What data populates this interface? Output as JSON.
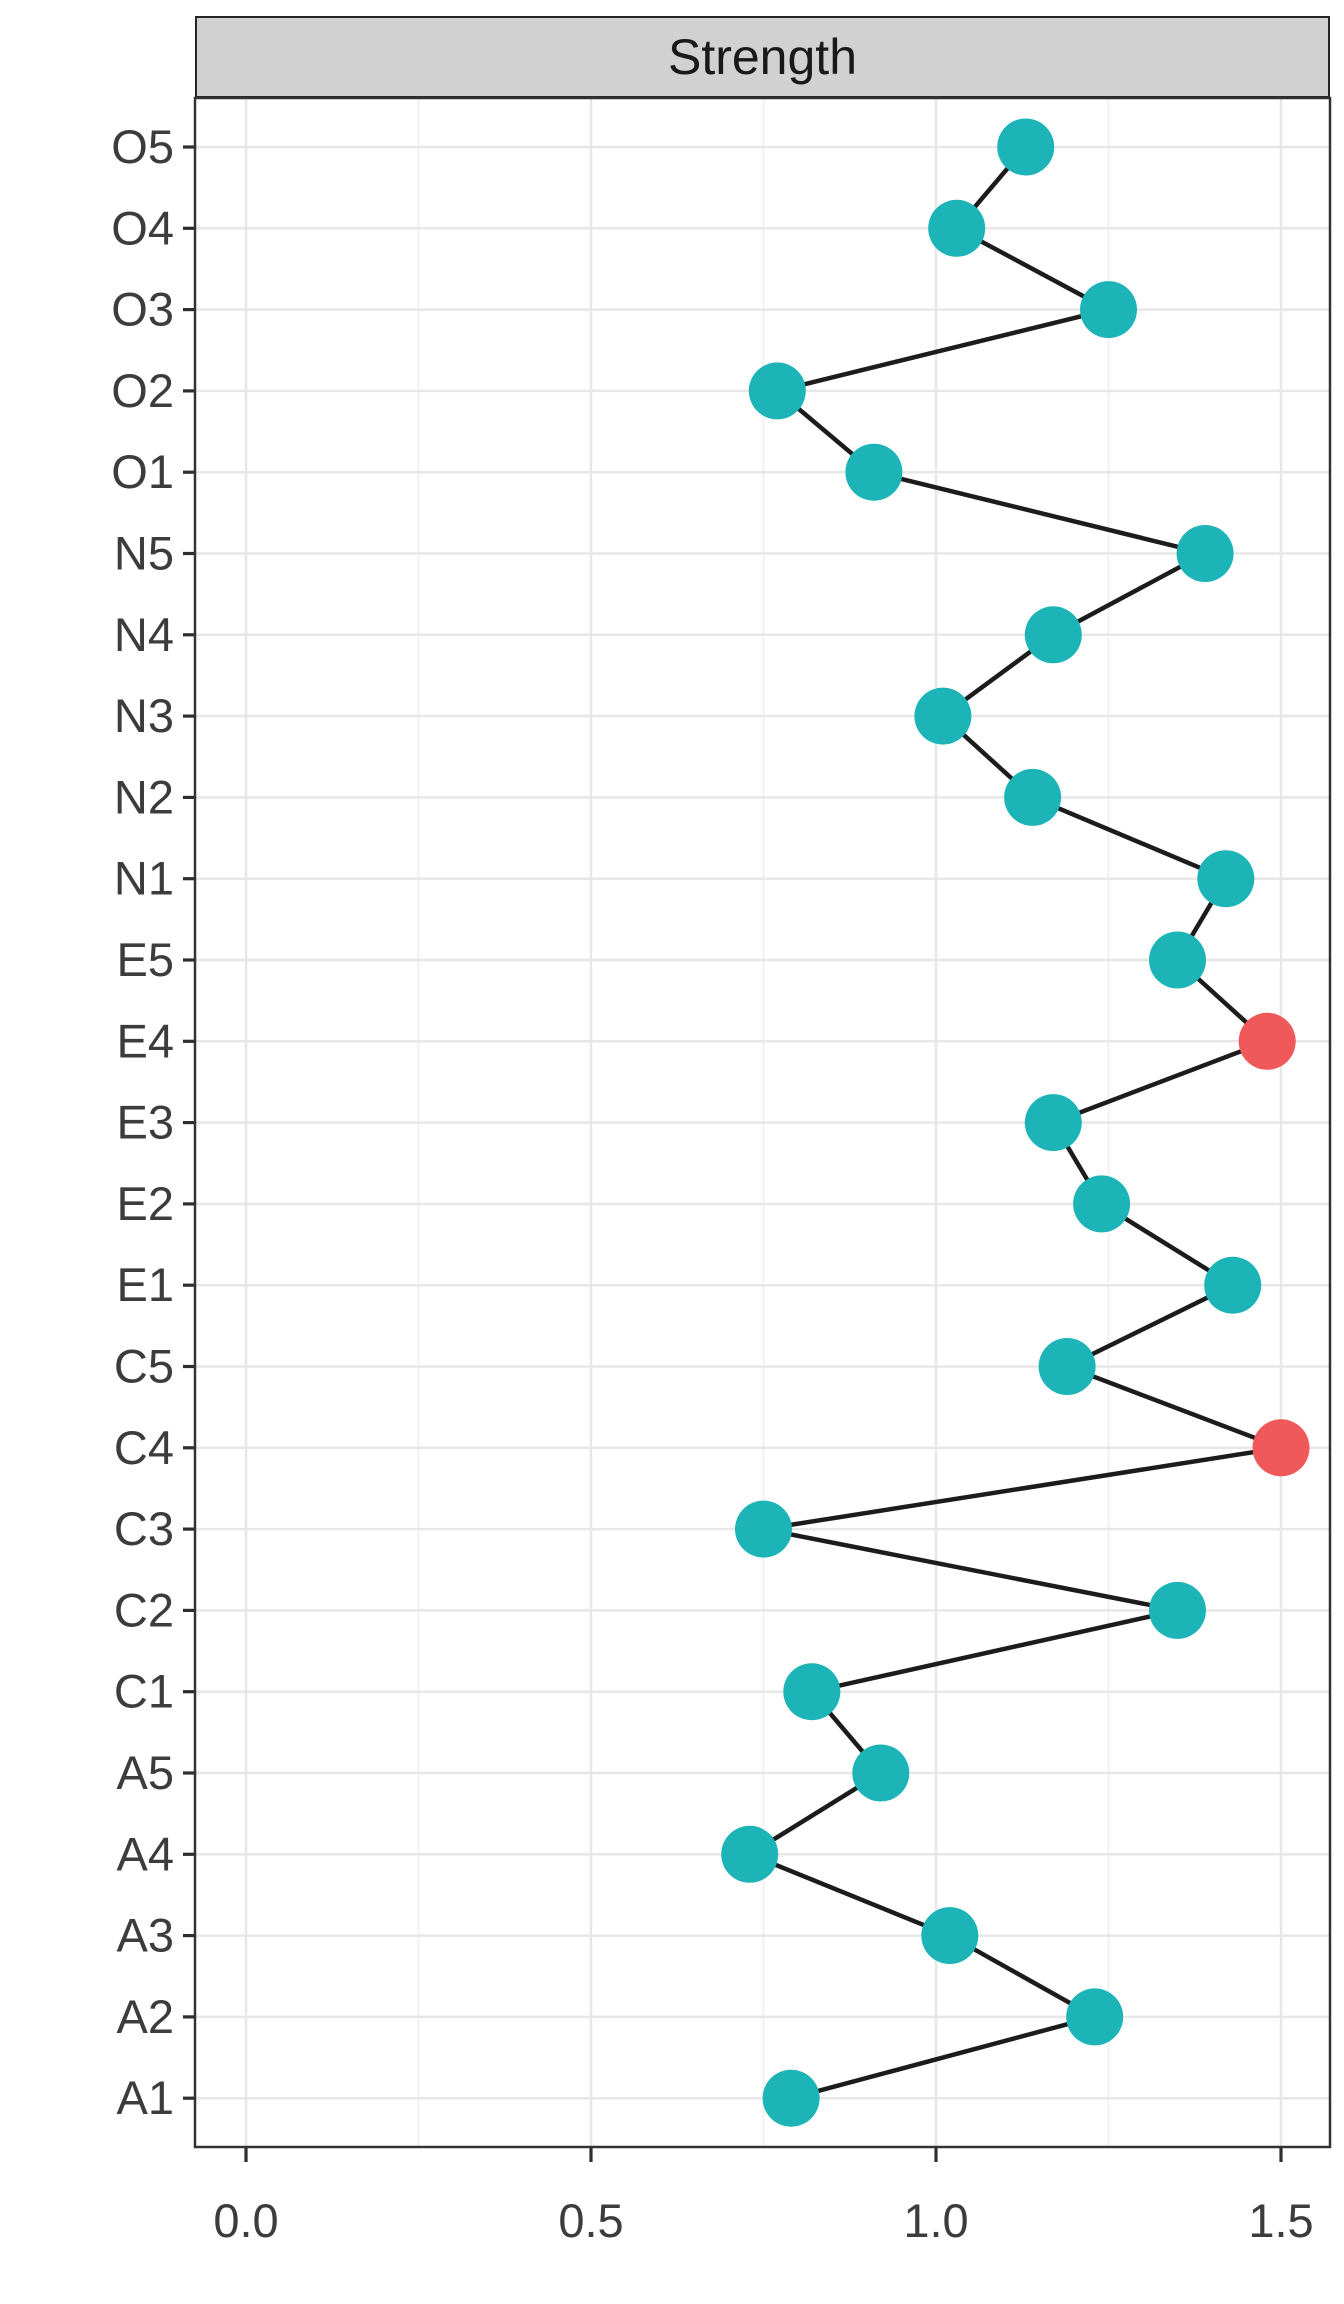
{
  "chart_data": {
    "type": "line",
    "orientation": "horizontal",
    "title": "Strength",
    "categories": [
      "O5",
      "O4",
      "O3",
      "O2",
      "O1",
      "N5",
      "N4",
      "N3",
      "N2",
      "N1",
      "E5",
      "E4",
      "E3",
      "E2",
      "E1",
      "C5",
      "C4",
      "C3",
      "C2",
      "C1",
      "A5",
      "A4",
      "A3",
      "A2",
      "A1"
    ],
    "values": [
      1.13,
      1.03,
      1.25,
      0.77,
      0.91,
      1.39,
      1.17,
      1.01,
      1.14,
      1.42,
      1.35,
      1.48,
      1.17,
      1.24,
      1.43,
      1.19,
      1.5,
      0.75,
      1.35,
      0.82,
      0.92,
      0.73,
      1.02,
      1.23,
      0.79
    ],
    "highlighted": [
      "E4",
      "C4"
    ],
    "x_ticks": [
      "0.0",
      "0.5",
      "1.0",
      "1.5"
    ],
    "xlim": [
      -0.074,
      1.571
    ],
    "grid": "on",
    "legend": "none",
    "colors": {
      "point": "#1DB4B8",
      "highlight": "#F0595A",
      "line": "#1C1C1C",
      "grid_major": "#E7E7E7",
      "grid_minor": "#F1F1F1",
      "axis_text": "#3C3C3C",
      "tick_mark": "#2E2E2E",
      "panel_border": "#333333",
      "strip_fill": "#D1D1D1",
      "strip_border": "#262626",
      "strip_text": "#191919",
      "panel_bg": "#FFFFFF"
    }
  }
}
